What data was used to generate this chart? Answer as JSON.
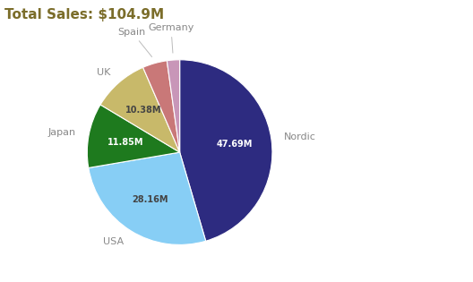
{
  "title": "Total Sales: $104.9M",
  "title_color": "#7b6d2a",
  "title_fontsize": 11,
  "segments": [
    {
      "label": "Nordic",
      "value": 47.69,
      "color": "#2d2b80",
      "label_value": "47.69M",
      "label_inside": true,
      "value_color": "white"
    },
    {
      "label": "USA",
      "value": 28.16,
      "color": "#87cef5",
      "label_value": "28.16M",
      "label_inside": true,
      "value_color": "#444444"
    },
    {
      "label": "Japan",
      "value": 11.85,
      "color": "#1e7a1e",
      "label_value": "11.85M",
      "label_inside": true,
      "value_color": "white"
    },
    {
      "label": "UK",
      "value": 10.38,
      "color": "#c8b96a",
      "label_value": "10.38M",
      "label_inside": true,
      "value_color": "#444444"
    },
    {
      "label": "Spain",
      "value": 4.5,
      "color": "#c97878",
      "label_value": "",
      "label_inside": false,
      "value_color": ""
    },
    {
      "label": "Germany",
      "value": 2.32,
      "color": "#c896b8",
      "label_value": "",
      "label_inside": false,
      "value_color": ""
    }
  ],
  "background_color": "#ffffff",
  "label_color": "#888888",
  "startangle": 90,
  "figsize": [
    5.28,
    3.15
  ],
  "dpi": 100
}
